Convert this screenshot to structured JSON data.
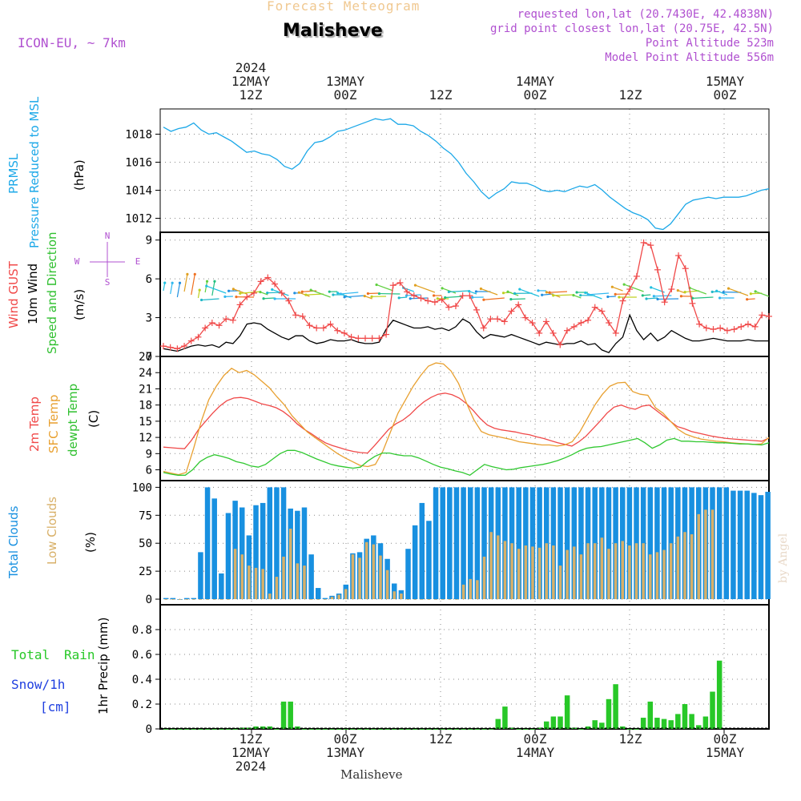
{
  "header": {
    "product": "Forecast Meteogram",
    "location": "Malisheve",
    "model": "ICON-EU, ~ 7km",
    "requested": "requested lon,lat (20.7430E, 42.4838N)",
    "grid_point": "grid point closest lon,lat (20.75E, 42.5N)",
    "point_altitude": "Point Altitude 523m",
    "model_altitude": "Model Point Altitude 556m"
  },
  "footer": {
    "location": "Malisheve",
    "credit": "by Angel"
  },
  "time_axis": {
    "top": [
      {
        "id": "t12a",
        "lines": [
          "2024",
          "12MAY",
          "12Z"
        ]
      },
      {
        "id": "t00a",
        "lines": [
          "13MAY",
          "00Z"
        ]
      },
      {
        "id": "t12b",
        "lines": [
          "12Z"
        ]
      },
      {
        "id": "t00b",
        "lines": [
          "14MAY",
          "00Z"
        ]
      },
      {
        "id": "t12c",
        "lines": [
          "12Z"
        ]
      },
      {
        "id": "t00c",
        "lines": [
          "15MAY",
          "00Z"
        ]
      }
    ],
    "bottom": [
      {
        "id": "b12a",
        "lines": [
          "12Z",
          "12MAY",
          "2024"
        ]
      },
      {
        "id": "b00a",
        "lines": [
          "00Z",
          "13MAY"
        ]
      },
      {
        "id": "b12b",
        "lines": [
          "12Z"
        ]
      },
      {
        "id": "b00b",
        "lines": [
          "00Z",
          "14MAY"
        ]
      },
      {
        "id": "b12c",
        "lines": [
          "12Z"
        ]
      },
      {
        "id": "b00c",
        "lines": [
          "00Z",
          "15MAY"
        ]
      }
    ]
  },
  "panel_labels": {
    "p1": {
      "a": "PRMSL",
      "b": "Pressure Reduced to MSL",
      "unit": "(hPa)"
    },
    "p2": {
      "a": "Wind GUST",
      "b": "10m Wind",
      "c": "Speed and Direction",
      "unit": "(m/s)",
      "compass": {
        "n": "N",
        "s": "S",
        "e": "E",
        "w": "W"
      }
    },
    "p3": {
      "a": "2m Temp",
      "b": "SFC Temp",
      "c": "dewpt Temp",
      "unit": "(C)"
    },
    "p4": {
      "a": "Total Clouds",
      "b": "Low Clouds",
      "unit": "(%)"
    },
    "p5": {
      "a": "Total",
      "b": "Rain",
      "c": "Snow/1h",
      "d": "[cm]",
      "e": "1hr Precip (mm)"
    }
  },
  "chart_data": [
    {
      "type": "line",
      "id": "pressure",
      "title": "PRMSL Pressure Reduced to MSL",
      "ylabel": "(hPa)",
      "x_hours_from_12may_00z": [
        0,
        96
      ],
      "ylim": [
        1011,
        1019.8
      ],
      "yticks": [
        1012,
        1014,
        1016,
        1018
      ],
      "series": [
        {
          "name": "PRMSL",
          "color": "#1ca8e8",
          "values": [
            1018.5,
            1018.2,
            1018.4,
            1018.5,
            1018.8,
            1018.3,
            1018.0,
            1018.1,
            1017.8,
            1017.5,
            1017.1,
            1016.7,
            1016.8,
            1016.6,
            1016.5,
            1016.2,
            1015.7,
            1015.5,
            1015.9,
            1016.8,
            1017.4,
            1017.5,
            1017.8,
            1018.2,
            1018.3,
            1018.5,
            1018.7,
            1018.9,
            1019.1,
            1019.0,
            1019.1,
            1018.7,
            1018.7,
            1018.6,
            1018.2,
            1017.9,
            1017.5,
            1017.0,
            1016.6,
            1016.0,
            1015.2,
            1014.6,
            1013.9,
            1013.4,
            1013.8,
            1014.1,
            1014.6,
            1014.5,
            1014.5,
            1014.3,
            1014.0,
            1013.9,
            1014.0,
            1013.9,
            1014.1,
            1014.3,
            1014.2,
            1014.4,
            1014.0,
            1013.5,
            1013.1,
            1012.7,
            1012.4,
            1012.2,
            1011.9,
            1011.3,
            1011.2,
            1011.6,
            1012.3,
            1013.0,
            1013.3,
            1013.4,
            1013.5,
            1013.4,
            1013.5,
            1013.5,
            1013.5,
            1013.6,
            1013.8,
            1014.0,
            1014.1
          ]
        }
      ]
    },
    {
      "type": "line",
      "id": "wind",
      "title": "Wind GUST / 10m Wind Speed and Direction",
      "ylabel": "(m/s)",
      "ylim": [
        0,
        9.6
      ],
      "yticks": [
        0,
        3,
        6,
        9
      ],
      "series": [
        {
          "name": "Wind GUST",
          "color": "#f04848",
          "values": [
            0.8,
            0.7,
            0.6,
            0.8,
            1.2,
            1.5,
            2.2,
            2.6,
            2.4,
            2.9,
            2.8,
            4.0,
            4.6,
            4.9,
            5.8,
            6.1,
            5.6,
            4.9,
            4.3,
            3.2,
            3.1,
            2.4,
            2.2,
            2.2,
            2.5,
            2.0,
            1.8,
            1.5,
            1.4,
            1.4,
            1.4,
            1.4,
            1.7,
            5.5,
            5.7,
            5.0,
            4.7,
            4.5,
            4.3,
            4.2,
            4.4,
            3.8,
            3.9,
            4.7,
            4.7,
            3.6,
            2.2,
            2.9,
            2.9,
            2.7,
            3.5,
            4.0,
            3.0,
            2.6,
            1.8,
            2.7,
            1.8,
            0.9,
            2.0,
            2.3,
            2.6,
            2.8,
            3.8,
            3.5,
            2.6,
            1.8,
            4.3,
            5.2,
            6.2,
            8.8,
            8.6,
            6.7,
            4.2,
            5.2,
            7.8,
            6.8,
            4.1,
            2.5,
            2.2,
            2.1,
            2.2,
            2.0,
            2.1,
            2.3,
            2.5,
            2.3,
            3.2,
            3.1
          ]
        },
        {
          "name": "10m Wind",
          "color": "#000000",
          "values": [
            0.6,
            0.5,
            0.4,
            0.6,
            0.8,
            0.9,
            0.8,
            0.9,
            0.7,
            1.1,
            1.0,
            1.6,
            2.5,
            2.6,
            2.5,
            2.1,
            1.8,
            1.5,
            1.3,
            1.6,
            1.6,
            1.2,
            1.0,
            1.1,
            1.3,
            1.2,
            1.2,
            1.3,
            1.1,
            1.0,
            1.0,
            1.1,
            2.1,
            2.8,
            2.6,
            2.4,
            2.2,
            2.2,
            2.3,
            2.1,
            2.2,
            2.0,
            2.3,
            2.9,
            2.6,
            1.9,
            1.4,
            1.7,
            1.6,
            1.5,
            1.7,
            1.5,
            1.3,
            1.1,
            0.9,
            1.1,
            1.0,
            0.9,
            1.0,
            1.0,
            1.2,
            0.9,
            1.0,
            0.5,
            0.3,
            1.0,
            1.5,
            3.2,
            2.0,
            1.3,
            1.8,
            1.2,
            1.5,
            2.0,
            1.7,
            1.4,
            1.2,
            1.2,
            1.3,
            1.4,
            1.3,
            1.2,
            1.2,
            1.2,
            1.3,
            1.2,
            1.2,
            1.2
          ]
        }
      ]
    },
    {
      "type": "line",
      "id": "temperature",
      "title": "2m Temp / SFC Temp / dewpt Temp",
      "ylabel": "(C)",
      "ylim": [
        4,
        27
      ],
      "yticks": [
        6,
        9,
        12,
        15,
        18,
        21,
        24,
        27
      ],
      "series": [
        {
          "name": "2m Temp",
          "color": "#f04848",
          "values": [
            10.2,
            10.1,
            10.0,
            9.9,
            11.5,
            13.5,
            15.0,
            16.5,
            17.8,
            18.8,
            19.3,
            19.4,
            19.2,
            18.7,
            18.2,
            17.9,
            17.5,
            16.8,
            15.8,
            14.5,
            13.5,
            12.7,
            11.8,
            11.0,
            10.5,
            10.1,
            9.7,
            9.4,
            9.2,
            9.1,
            10.5,
            12.0,
            13.5,
            14.5,
            15.2,
            16.2,
            17.5,
            18.6,
            19.4,
            20.0,
            20.2,
            19.9,
            19.3,
            18.3,
            17.0,
            15.5,
            14.3,
            13.7,
            13.4,
            13.2,
            13.0,
            12.7,
            12.5,
            12.1,
            11.8,
            11.4,
            11.0,
            10.7,
            10.4,
            11.2,
            12.2,
            13.6,
            15.0,
            16.5,
            17.6,
            18.0,
            17.5,
            17.2,
            17.8,
            18.0,
            17.0,
            16.0,
            15.0,
            14.0,
            13.6,
            13.1,
            12.8,
            12.5,
            12.2,
            12.0,
            11.8,
            11.7,
            11.6,
            11.5,
            11.4,
            11.3,
            11.9
          ]
        },
        {
          "name": "SFC Temp",
          "color": "#e8a030",
          "values": [
            5.7,
            5.4,
            5.1,
            5.5,
            10.0,
            15.0,
            19.0,
            21.5,
            23.5,
            24.8,
            24.0,
            24.4,
            23.6,
            22.4,
            21.2,
            19.5,
            18.0,
            16.0,
            14.5,
            13.0,
            12.0,
            11.0,
            10.0,
            9.0,
            8.2,
            7.5,
            6.8,
            6.6,
            7.0,
            9.5,
            13.0,
            16.5,
            19.0,
            21.5,
            23.5,
            25.2,
            25.8,
            25.6,
            24.3,
            22.0,
            18.5,
            15.3,
            13.1,
            12.5,
            12.2,
            11.9,
            11.6,
            11.2,
            11.0,
            10.8,
            10.6,
            10.6,
            10.4,
            10.6,
            11.2,
            13.0,
            15.5,
            18.0,
            20.0,
            21.5,
            22.1,
            22.2,
            20.5,
            20.0,
            19.8,
            17.5,
            16.5,
            15.0,
            13.5,
            12.6,
            12.1,
            11.7,
            11.5,
            11.3,
            11.2,
            11.0,
            10.9,
            10.8,
            10.7,
            10.8,
            12.0
          ]
        },
        {
          "name": "dewpt Temp",
          "color": "#30c830",
          "values": [
            5.5,
            5.2,
            5.0,
            5.0,
            6.0,
            7.5,
            8.3,
            8.8,
            8.5,
            8.1,
            7.5,
            7.2,
            6.7,
            6.5,
            7.0,
            8.0,
            9.0,
            9.6,
            9.6,
            9.2,
            8.6,
            8.0,
            7.5,
            7.0,
            6.7,
            6.5,
            6.3,
            6.5,
            7.6,
            8.5,
            9.1,
            9.1,
            8.8,
            8.6,
            8.6,
            8.2,
            7.6,
            7.0,
            6.5,
            6.2,
            5.8,
            5.5,
            5.0,
            6.0,
            7.0,
            6.6,
            6.3,
            6.0,
            6.1,
            6.4,
            6.6,
            6.8,
            7.0,
            7.3,
            7.7,
            8.2,
            8.8,
            9.5,
            10.0,
            10.2,
            10.3,
            10.6,
            10.9,
            11.2,
            11.5,
            11.8,
            11.0,
            10.0,
            10.6,
            11.5,
            11.8,
            11.3,
            11.3,
            11.2,
            11.2,
            11.1,
            11.0,
            11.0,
            10.9,
            10.8,
            10.8,
            10.7,
            10.6,
            11.0
          ]
        }
      ]
    },
    {
      "type": "bar",
      "id": "clouds",
      "title": "Total Clouds / Low Clouds",
      "ylabel": "(%)",
      "ylim": [
        -5,
        106
      ],
      "yticks": [
        0,
        25,
        50,
        75,
        100
      ],
      "series": [
        {
          "name": "Total Clouds",
          "color": "#1890e0",
          "values": [
            1,
            1,
            0,
            1,
            1,
            42,
            100,
            90,
            23,
            77,
            88,
            82,
            57,
            84,
            86,
            100,
            100,
            100,
            81,
            79,
            82,
            40,
            10,
            1,
            3,
            5,
            13,
            41,
            42,
            54,
            57,
            50,
            36,
            14,
            8,
            45,
            66,
            86,
            70,
            100,
            100,
            100,
            100,
            100,
            100,
            100,
            100,
            100,
            100,
            100,
            100,
            100,
            100,
            100,
            100,
            100,
            100,
            100,
            100,
            100,
            100,
            100,
            100,
            100,
            100,
            100,
            100,
            100,
            100,
            100,
            100,
            100,
            100,
            100,
            100,
            100,
            100,
            100,
            100,
            100,
            100,
            100,
            97,
            97,
            97,
            95,
            93,
            96
          ]
        },
        {
          "name": "Low Clouds",
          "color": "#d8b068",
          "values": [
            0,
            0,
            0,
            0,
            0,
            0,
            0,
            0,
            0,
            0,
            45,
            40,
            30,
            28,
            27,
            5,
            20,
            38,
            63,
            32,
            30,
            0,
            0,
            0,
            2,
            4,
            9,
            40,
            37,
            51,
            49,
            39,
            26,
            7,
            5,
            0,
            0,
            0,
            0,
            0,
            0,
            0,
            0,
            13,
            18,
            17,
            38,
            60,
            57,
            52,
            50,
            45,
            48,
            47,
            46,
            50,
            48,
            30,
            44,
            47,
            40,
            50,
            50,
            55,
            45,
            50,
            52,
            48,
            50,
            50,
            40,
            42,
            44,
            50,
            56,
            60,
            58,
            76,
            80,
            80
          ]
        }
      ]
    },
    {
      "type": "bar",
      "id": "precip",
      "title": "1hr Precip (mm)",
      "ylabel": "1hr Precip (mm)",
      "ylim": [
        0,
        1.0
      ],
      "yticks": [
        0,
        0.2,
        0.4,
        0.6,
        0.8
      ],
      "series": [
        {
          "name": "Total Rain",
          "color": "#28c828",
          "values": [
            0,
            0,
            0,
            0,
            0,
            0,
            0,
            0,
            0,
            0,
            0,
            0.01,
            0.01,
            0.02,
            0.02,
            0.02,
            0,
            0.22,
            0.22,
            0.02,
            0,
            0,
            0,
            0,
            0,
            0,
            0,
            0,
            0,
            0,
            0,
            0,
            0,
            0,
            0,
            0,
            0,
            0,
            0,
            0,
            0,
            0,
            0,
            0,
            0,
            0,
            0,
            0,
            0.08,
            0.18,
            0.01,
            0,
            0,
            0,
            0.01,
            0.06,
            0.1,
            0.1,
            0.27,
            0.01,
            0,
            0.02,
            0.07,
            0.05,
            0.24,
            0.36,
            0.02,
            0,
            0,
            0.09,
            0.22,
            0.09,
            0.08,
            0.07,
            0.12,
            0.2,
            0.12,
            0.03,
            0.1,
            0.3,
            0.55
          ]
        }
      ]
    }
  ]
}
